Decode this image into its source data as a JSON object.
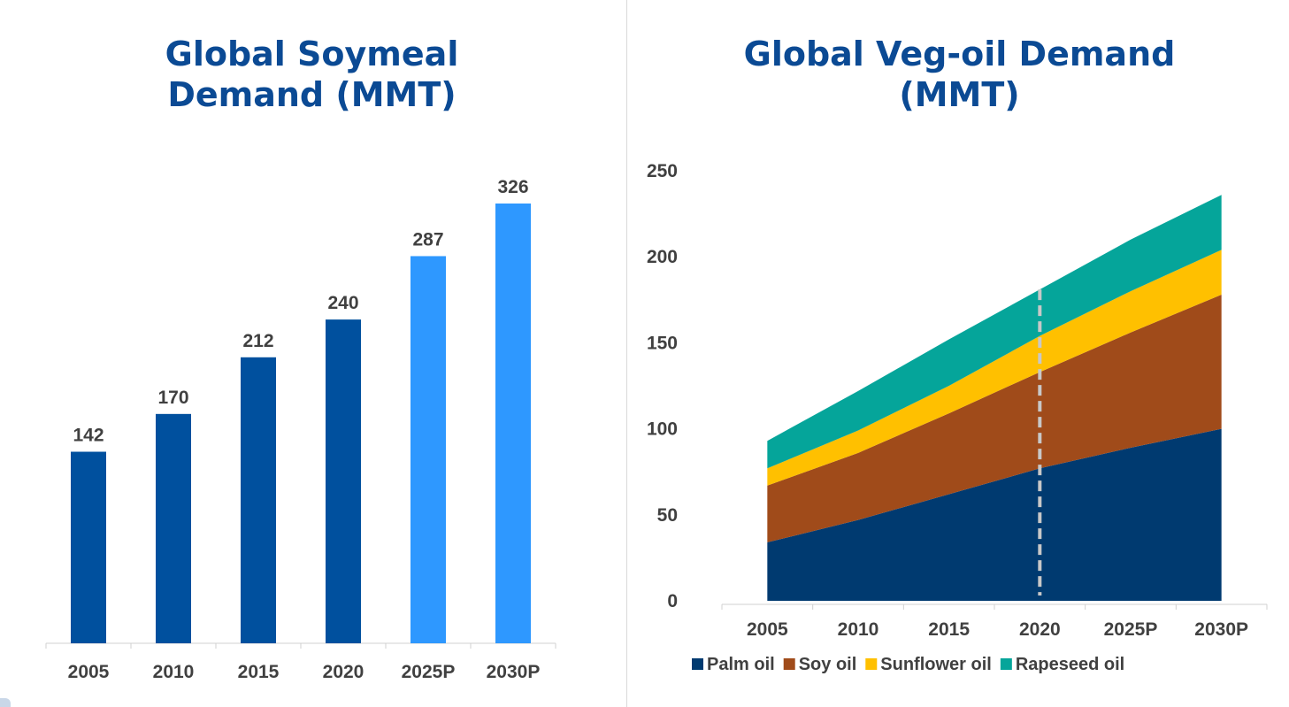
{
  "chart_data": [
    {
      "type": "bar",
      "title": "Global Soymeal\nDemand (MMT)",
      "categories": [
        "2005",
        "2010",
        "2015",
        "2020",
        "2025P",
        "2030P"
      ],
      "values": [
        142,
        170,
        212,
        240,
        287,
        326
      ],
      "data_labels": [
        "142",
        "170",
        "212",
        "240",
        "287",
        "326"
      ],
      "projected": [
        false,
        false,
        false,
        false,
        true,
        true
      ],
      "colors": {
        "actual": "#00509e",
        "projected": "#2e98ff"
      },
      "ylim": [
        0,
        326
      ],
      "grid": false,
      "xlabel": "",
      "ylabel": ""
    },
    {
      "type": "area",
      "stacked": true,
      "title": "Global Veg-oil Demand\n(MMT)",
      "x": [
        "2005",
        "2010",
        "2015",
        "2020",
        "2025P",
        "2030P"
      ],
      "series": [
        {
          "name": "Palm oil",
          "values": [
            34,
            47,
            62,
            77,
            89,
            100
          ],
          "color": "#003a70"
        },
        {
          "name": "Soy oil",
          "values": [
            33,
            39,
            47,
            56,
            67,
            78
          ],
          "color": "#a04b1a"
        },
        {
          "name": "Sunflower oil",
          "values": [
            10,
            13,
            16,
            21,
            24,
            26
          ],
          "color": "#ffc000"
        },
        {
          "name": "Rapeseed oil",
          "values": [
            16,
            23,
            27,
            27,
            30,
            32
          ],
          "color": "#05a59a"
        }
      ],
      "yticks": [
        "0",
        "50",
        "100",
        "150",
        "200",
        "250"
      ],
      "ylim": [
        0,
        250
      ],
      "marker_line": {
        "x": "2020",
        "style": "dashed",
        "color": "#c8c8c8"
      },
      "legend_position": "bottom",
      "grid": false,
      "xlabel": "",
      "ylabel": ""
    }
  ]
}
